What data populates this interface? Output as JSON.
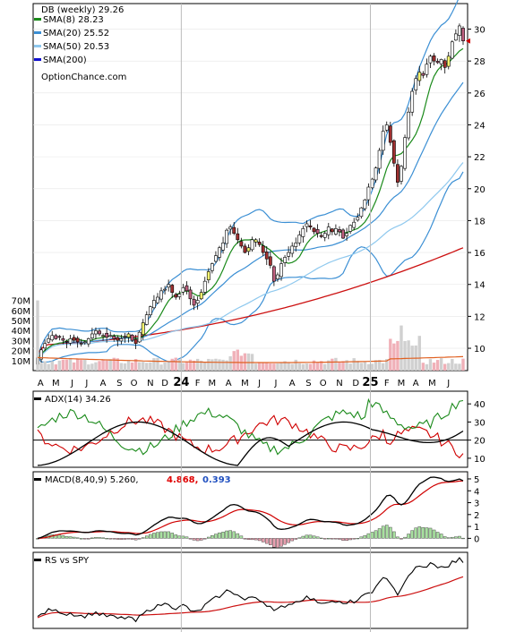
{
  "chart_data": [
    {
      "panel": "price",
      "type": "candlestick",
      "title": "DB (weekly) 29.26",
      "watermark": "OptionChance.com",
      "y_ticks": [
        10,
        12,
        14,
        16,
        18,
        20,
        22,
        24,
        26,
        28,
        30
      ],
      "ylim": [
        8.6,
        31.6
      ],
      "legend": [
        {
          "label": "SMA(8) 28.23",
          "color": "#1a8a1a"
        },
        {
          "label": "SMA(20) 25.52",
          "color": "#3b8fd4"
        },
        {
          "label": "SMA(50) 20.53",
          "color": "#8ec8ee"
        },
        {
          "label": "SMA(200)",
          "color": "#1010d0"
        }
      ],
      "x_ticks": [
        {
          "label": "A",
          "week": 0.8
        },
        {
          "label": "M",
          "week": 5
        },
        {
          "label": "J",
          "week": 9.5
        },
        {
          "label": "J",
          "week": 13.5
        },
        {
          "label": "A",
          "week": 18
        },
        {
          "label": "S",
          "week": 22.5
        },
        {
          "label": "O",
          "week": 26.5
        },
        {
          "label": "N",
          "week": 31
        },
        {
          "label": "D",
          "week": 35
        },
        {
          "label": "24",
          "week": 39.5,
          "year": true
        },
        {
          "label": "F",
          "week": 44
        },
        {
          "label": "M",
          "week": 48
        },
        {
          "label": "A",
          "week": 52.5
        },
        {
          "label": "M",
          "week": 57
        },
        {
          "label": "J",
          "week": 61
        },
        {
          "label": "J",
          "week": 65.5
        },
        {
          "label": "A",
          "week": 70
        },
        {
          "label": "S",
          "week": 74.5
        },
        {
          "label": "O",
          "week": 78.5
        },
        {
          "label": "N",
          "week": 83
        },
        {
          "label": "D",
          "week": 87.5
        },
        {
          "label": "25",
          "week": 91.5,
          "year": true
        },
        {
          "label": "F",
          "week": 96
        },
        {
          "label": "M",
          "week": 100
        },
        {
          "label": "A",
          "week": 104
        },
        {
          "label": "M",
          "week": 108.5
        },
        {
          "label": "J",
          "week": 113
        }
      ],
      "close": [
        9.4,
        9.9,
        10.3,
        10.6,
        10.8,
        10.6,
        10.7,
        10.5,
        10.4,
        10.6,
        10.5,
        10.4,
        10.3,
        10.4,
        10.6,
        10.9,
        11.1,
        10.9,
        10.8,
        10.7,
        10.8,
        10.6,
        10.5,
        10.6,
        10.7,
        10.9,
        10.5,
        10.3,
        11.0,
        11.6,
        12.1,
        12.6,
        13.0,
        13.2,
        13.6,
        13.7,
        14.0,
        13.5,
        13.2,
        13.4,
        13.8,
        13.6,
        13.1,
        12.7,
        13.0,
        13.5,
        14.2,
        14.8,
        15.3,
        15.8,
        16.3,
        16.6,
        17.4,
        17.6,
        17.2,
        16.8,
        16.4,
        16.0,
        16.3,
        16.8,
        16.8,
        16.5,
        16.0,
        15.6,
        15.2,
        14.2,
        14.6,
        15.3,
        15.7,
        16.0,
        16.4,
        16.6,
        17.1,
        17.5,
        17.8,
        17.6,
        17.3,
        17.2,
        17.0,
        17.2,
        17.6,
        17.3,
        17.5,
        17.3,
        16.9,
        17.2,
        17.7,
        17.9,
        18.2,
        18.8,
        19.3,
        20.1,
        20.6,
        21.3,
        22.4,
        23.6,
        24.0,
        22.9,
        21.6,
        20.4,
        21.4,
        23.2,
        24.8,
        26.1,
        26.9,
        27.3,
        27.1,
        27.8,
        28.3,
        28.0,
        27.9,
        28.1,
        27.6,
        28.3,
        29.2,
        29.7,
        30.2,
        29.26
      ],
      "sma8_last": 28.23,
      "sma20_last": 25.52,
      "sma50_last": 20.53
    },
    {
      "panel": "volume",
      "type": "bar",
      "y_ticks": [
        "70M",
        "60M",
        "50M",
        "40M",
        "30M",
        "20M",
        "10M"
      ],
      "ylim": [
        0,
        75
      ]
    },
    {
      "panel": "adx",
      "type": "line",
      "label": "ADX(14) 34.26",
      "y_ticks": [
        10,
        20,
        30,
        40
      ],
      "ylim": [
        5,
        47
      ]
    },
    {
      "panel": "macd",
      "type": "line",
      "label": "MACD(8,40,9) 5.260,",
      "signal_value": "4.868,",
      "hist_value": "0.393",
      "y_ticks": [
        0,
        1,
        2,
        3,
        4,
        5
      ],
      "ylim": [
        -0.8,
        5.6
      ]
    },
    {
      "panel": "rs",
      "type": "line",
      "label": "RS vs SPY"
    }
  ]
}
